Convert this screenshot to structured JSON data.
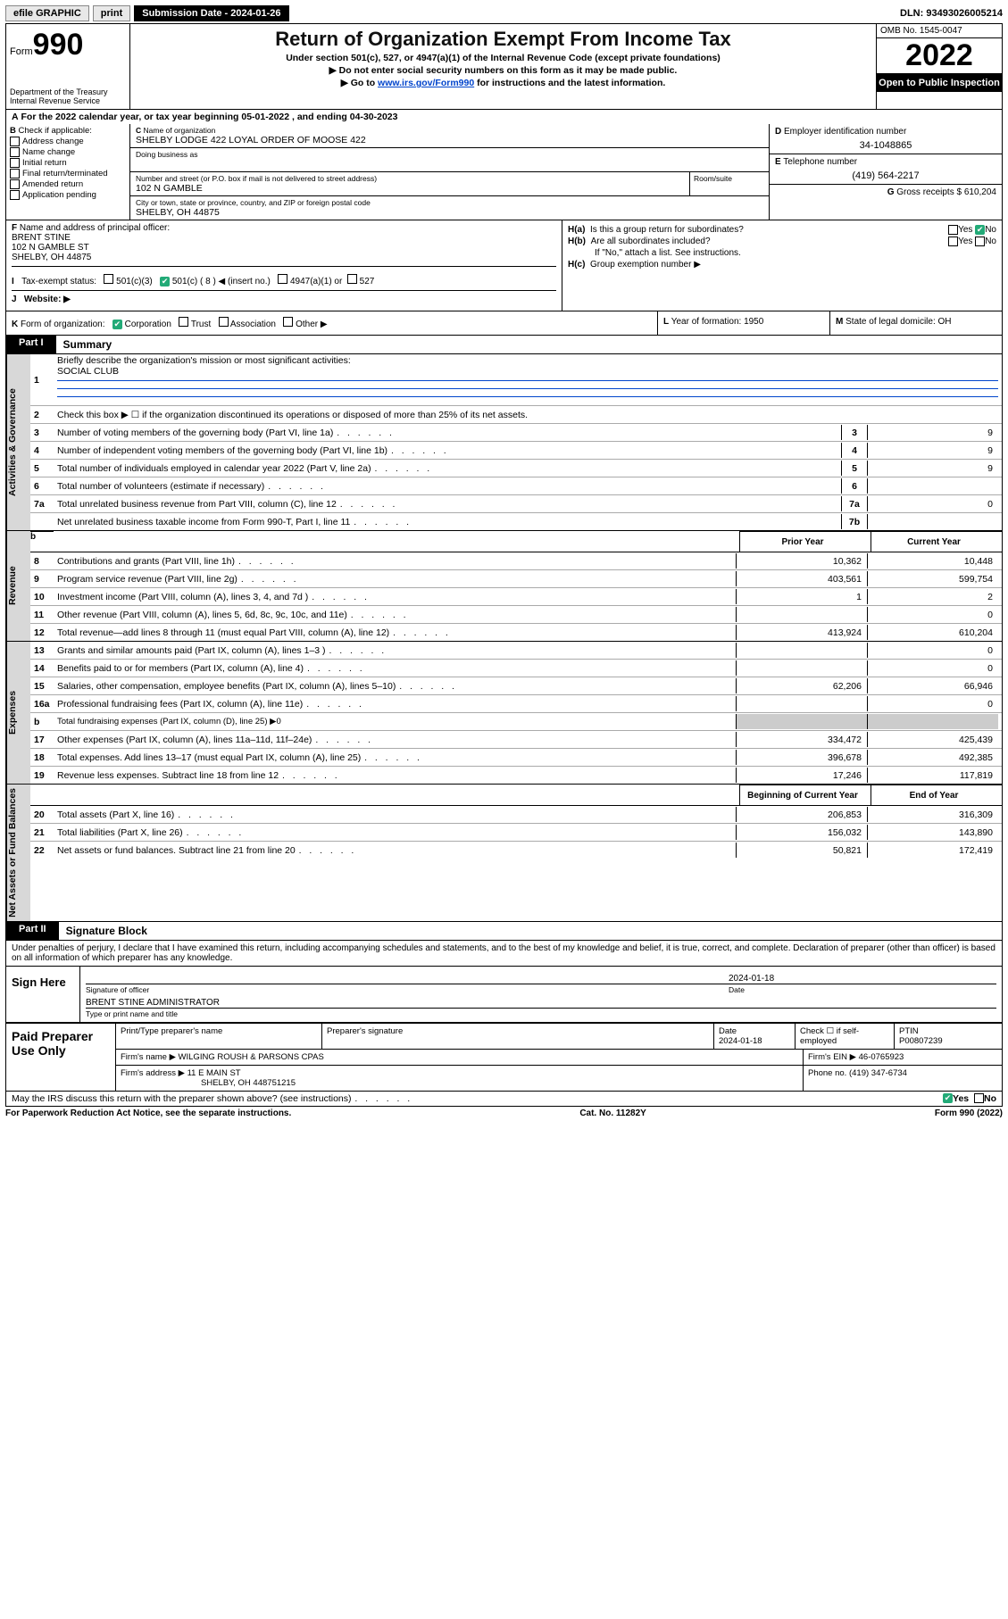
{
  "topbar": {
    "efile": "efile GRAPHIC",
    "print": "print",
    "sub_label": "Submission Date - 2024-01-26",
    "dln": "DLN: 93493026005214"
  },
  "header": {
    "form_word": "Form",
    "form_num": "990",
    "dept": "Department of the Treasury",
    "irs": "Internal Revenue Service",
    "title": "Return of Organization Exempt From Income Tax",
    "sub1": "Under section 501(c), 527, or 4947(a)(1) of the Internal Revenue Code (except private foundations)",
    "sub2": "▶ Do not enter social security numbers on this form as it may be made public.",
    "sub3_pre": "▶ Go to ",
    "sub3_link": "www.irs.gov/Form990",
    "sub3_post": " for instructions and the latest information.",
    "omb": "OMB No. 1545-0047",
    "year": "2022",
    "open": "Open to Public Inspection"
  },
  "A": {
    "text_pre": "For the 2022 calendar year, or tax year beginning ",
    "begin": "05-01-2022",
    "mid": "   , and ending ",
    "end": "04-30-2023"
  },
  "B": {
    "label": "Check if applicable:",
    "opts": [
      "Address change",
      "Name change",
      "Initial return",
      "Final return/terminated",
      "Amended return",
      "Application pending"
    ]
  },
  "C": {
    "name_label": "Name of organization",
    "name": "SHELBY LODGE 422 LOYAL ORDER OF MOOSE 422",
    "dba_label": "Doing business as",
    "addr_label": "Number and street (or P.O. box if mail is not delivered to street address)",
    "room_label": "Room/suite",
    "addr": "102 N GAMBLE",
    "city_label": "City or town, state or province, country, and ZIP or foreign postal code",
    "city": "SHELBY, OH  44875"
  },
  "D": {
    "label": "Employer identification number",
    "val": "34-1048865"
  },
  "E": {
    "label": "Telephone number",
    "val": "(419) 564-2217"
  },
  "G": {
    "label_pre": "Gross receipts $ ",
    "val": "610,204"
  },
  "F": {
    "label": "Name and address of principal officer:",
    "name": "BRENT STINE",
    "addr1": "102 N GAMBLE ST",
    "addr2": "SHELBY, OH  44875"
  },
  "H": {
    "a": "Is this a group return for subordinates?",
    "b": "Are all subordinates included?",
    "b2": "If \"No,\" attach a list. See instructions.",
    "c": "Group exemption number ▶",
    "yes": "Yes",
    "no": "No"
  },
  "I": {
    "label": "Tax-exempt status:",
    "items": [
      "501(c)(3)",
      "501(c) ( 8 ) ◀ (insert no.)",
      "4947(a)(1) or",
      "527"
    ]
  },
  "J": {
    "label": "Website: ▶"
  },
  "K": {
    "label": "Form of organization:",
    "items": [
      "Corporation",
      "Trust",
      "Association",
      "Other ▶"
    ]
  },
  "L": {
    "label": "Year of formation: ",
    "val": "1950"
  },
  "M": {
    "label": "State of legal domicile: ",
    "val": "OH"
  },
  "parts": {
    "I": "Part I",
    "I_t": "Summary",
    "II": "Part II",
    "II_t": "Signature Block"
  },
  "summary": {
    "q1": "Briefly describe the organization's mission or most significant activities:",
    "q1v": "SOCIAL CLUB",
    "q2": "Check this box ▶ ☐  if the organization discontinued its operations or disposed of more than 25% of its net assets.",
    "lines_gov": [
      {
        "n": "3",
        "t": "Number of voting members of the governing body (Part VI, line 1a)",
        "box": "3",
        "v": "9"
      },
      {
        "n": "4",
        "t": "Number of independent voting members of the governing body (Part VI, line 1b)",
        "box": "4",
        "v": "9"
      },
      {
        "n": "5",
        "t": "Total number of individuals employed in calendar year 2022 (Part V, line 2a)",
        "box": "5",
        "v": "9"
      },
      {
        "n": "6",
        "t": "Total number of volunteers (estimate if necessary)",
        "box": "6",
        "v": ""
      },
      {
        "n": "7a",
        "t": "Total unrelated business revenue from Part VIII, column (C), line 12",
        "box": "7a",
        "v": "0"
      },
      {
        "n": "",
        "t": "Net unrelated business taxable income from Form 990-T, Part I, line 11",
        "box": "7b",
        "v": ""
      }
    ],
    "prior": "Prior Year",
    "current": "Current Year",
    "rev": [
      {
        "n": "8",
        "t": "Contributions and grants (Part VIII, line 1h)",
        "p": "10,362",
        "c": "10,448"
      },
      {
        "n": "9",
        "t": "Program service revenue (Part VIII, line 2g)",
        "p": "403,561",
        "c": "599,754"
      },
      {
        "n": "10",
        "t": "Investment income (Part VIII, column (A), lines 3, 4, and 7d )",
        "p": "1",
        "c": "2"
      },
      {
        "n": "11",
        "t": "Other revenue (Part VIII, column (A), lines 5, 6d, 8c, 9c, 10c, and 11e)",
        "p": "",
        "c": "0"
      },
      {
        "n": "12",
        "t": "Total revenue—add lines 8 through 11 (must equal Part VIII, column (A), line 12)",
        "p": "413,924",
        "c": "610,204"
      }
    ],
    "exp": [
      {
        "n": "13",
        "t": "Grants and similar amounts paid (Part IX, column (A), lines 1–3 )",
        "p": "",
        "c": "0"
      },
      {
        "n": "14",
        "t": "Benefits paid to or for members (Part IX, column (A), line 4)",
        "p": "",
        "c": "0"
      },
      {
        "n": "15",
        "t": "Salaries, other compensation, employee benefits (Part IX, column (A), lines 5–10)",
        "p": "62,206",
        "c": "66,946"
      },
      {
        "n": "16a",
        "t": "Professional fundraising fees (Part IX, column (A), line 11e)",
        "p": "",
        "c": "0"
      },
      {
        "n": "b",
        "t": "Total fundraising expenses (Part IX, column (D), line 25) ▶0",
        "p": "-",
        "c": "-"
      },
      {
        "n": "17",
        "t": "Other expenses (Part IX, column (A), lines 11a–11d, 11f–24e)",
        "p": "334,472",
        "c": "425,439"
      },
      {
        "n": "18",
        "t": "Total expenses. Add lines 13–17 (must equal Part IX, column (A), line 25)",
        "p": "396,678",
        "c": "492,385"
      },
      {
        "n": "19",
        "t": "Revenue less expenses. Subtract line 18 from line 12",
        "p": "17,246",
        "c": "117,819"
      }
    ],
    "begin": "Beginning of Current Year",
    "end": "End of Year",
    "net": [
      {
        "n": "20",
        "t": "Total assets (Part X, line 16)",
        "p": "206,853",
        "c": "316,309"
      },
      {
        "n": "21",
        "t": "Total liabilities (Part X, line 26)",
        "p": "156,032",
        "c": "143,890"
      },
      {
        "n": "22",
        "t": "Net assets or fund balances. Subtract line 21 from line 20",
        "p": "50,821",
        "c": "172,419"
      }
    ],
    "tabs": {
      "gov": "Activities & Governance",
      "rev": "Revenue",
      "exp": "Expenses",
      "net": "Net Assets or Fund Balances"
    }
  },
  "sig": {
    "decl": "Under penalties of perjury, I declare that I have examined this return, including accompanying schedules and statements, and to the best of my knowledge and belief, it is true, correct, and complete. Declaration of preparer (other than officer) is based on all information of which preparer has any knowledge.",
    "sign_here": "Sign Here",
    "sig_officer": "Signature of officer",
    "date": "Date",
    "date_v": "2024-01-18",
    "name_title": "Type or print name and title",
    "name_v": "BRENT STINE  ADMINISTRATOR",
    "paid": "Paid Preparer Use Only",
    "p_name": "Print/Type preparer's name",
    "p_sig": "Preparer's signature",
    "p_date": "Date",
    "p_date_v": "2024-01-18",
    "p_chk": "Check ☐ if self-employed",
    "ptin_l": "PTIN",
    "ptin": "P00807239",
    "firm_name_l": "Firm's name   ▶",
    "firm_name": "WILGING ROUSH & PARSONS CPAS",
    "firm_ein_l": "Firm's EIN ▶",
    "firm_ein": "46-0765923",
    "firm_addr_l": "Firm's address ▶",
    "firm_addr": "11 E MAIN ST",
    "firm_city": "SHELBY, OH  448751215",
    "phone_l": "Phone no.",
    "phone": "(419) 347-6734",
    "discuss": "May the IRS discuss this return with the preparer shown above? (see instructions)"
  },
  "footer": {
    "pra": "For Paperwork Reduction Act Notice, see the separate instructions.",
    "cat": "Cat. No. 11282Y",
    "form": "Form 990 (2022)"
  }
}
